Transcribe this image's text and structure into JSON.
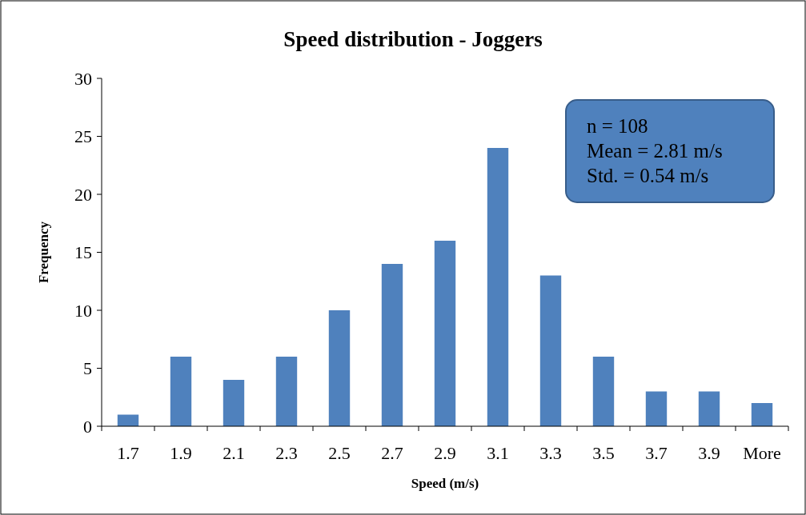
{
  "chart_data": {
    "type": "bar",
    "title": "Speed distribution - Joggers",
    "xlabel": "Speed (m/s)",
    "ylabel": "Frequency",
    "categories": [
      "1.7",
      "1.9",
      "2.1",
      "2.3",
      "2.5",
      "2.7",
      "2.9",
      "3.1",
      "3.3",
      "3.5",
      "3.7",
      "3.9",
      "More"
    ],
    "values": [
      1,
      6,
      4,
      6,
      10,
      14,
      16,
      24,
      13,
      6,
      3,
      3,
      2
    ],
    "color": "#4f81bd",
    "ylim": [
      0,
      30
    ],
    "yticks": [
      0,
      5,
      10,
      15,
      20,
      25,
      30
    ],
    "grid": false,
    "annotations": [
      "n = 108",
      "Mean = 2.81 m/s",
      "Std. = 0.54 m/s"
    ]
  }
}
